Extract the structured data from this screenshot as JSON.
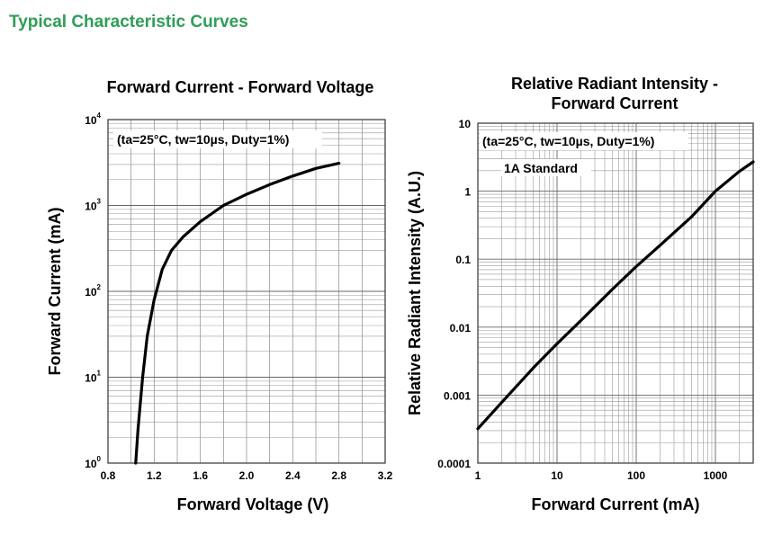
{
  "page_title": "Typical Characteristic Curves",
  "chart_data": [
    {
      "type": "line",
      "title": "Forward Current - Forward Voltage",
      "xlabel": "Forward Voltage (V)",
      "ylabel": "Forward Current (mA)",
      "xlim": [
        0.8,
        3.2
      ],
      "ylim": [
        1,
        10000
      ],
      "yscale": "log",
      "x_ticks": [
        "0.8",
        "1.2",
        "1.6",
        "2.0",
        "2.4",
        "2.8",
        "3.2"
      ],
      "y_ticks": [
        {
          "base": "10",
          "exp": "0"
        },
        {
          "base": "10",
          "exp": "1"
        },
        {
          "base": "10",
          "exp": "2"
        },
        {
          "base": "10",
          "exp": "3"
        },
        {
          "base": "10",
          "exp": "4"
        }
      ],
      "annotation": "(ta=25°C, tw=10µs, Duty=1%)",
      "grid": true,
      "series": [
        {
          "x": [
            1.04,
            1.06,
            1.1,
            1.14,
            1.2,
            1.27,
            1.35,
            1.45,
            1.6,
            1.8,
            2.0,
            2.2,
            2.4,
            2.6,
            2.8
          ],
          "y": [
            1,
            2.5,
            10,
            30,
            80,
            180,
            300,
            430,
            650,
            1000,
            1350,
            1750,
            2200,
            2700,
            3100
          ]
        }
      ]
    },
    {
      "type": "line",
      "title": [
        "Relative Radiant Intensity -",
        "Forward Current"
      ],
      "xlabel": "Forward Current (mA)",
      "ylabel": "Relative Radiant Intensity (A.U.)",
      "xlim": [
        1,
        3000
      ],
      "ylim": [
        0.0001,
        10
      ],
      "xscale": "log",
      "yscale": "log",
      "x_ticks": [
        "1",
        "10",
        "100",
        "1000"
      ],
      "y_ticks": [
        "0.0001",
        "0.001",
        "0.01",
        "0.1",
        "1",
        "10"
      ],
      "annotation": "(ta=25°C, tw=10µs, Duty=1%)",
      "annotation2": "1A Standard",
      "grid": true,
      "series": [
        {
          "x": [
            1,
            2,
            5,
            10,
            20,
            50,
            100,
            200,
            500,
            1000,
            2000,
            3000
          ],
          "y": [
            0.00032,
            0.00078,
            0.0025,
            0.0057,
            0.0125,
            0.036,
            0.078,
            0.16,
            0.42,
            1.0,
            1.95,
            2.7
          ]
        }
      ]
    }
  ]
}
